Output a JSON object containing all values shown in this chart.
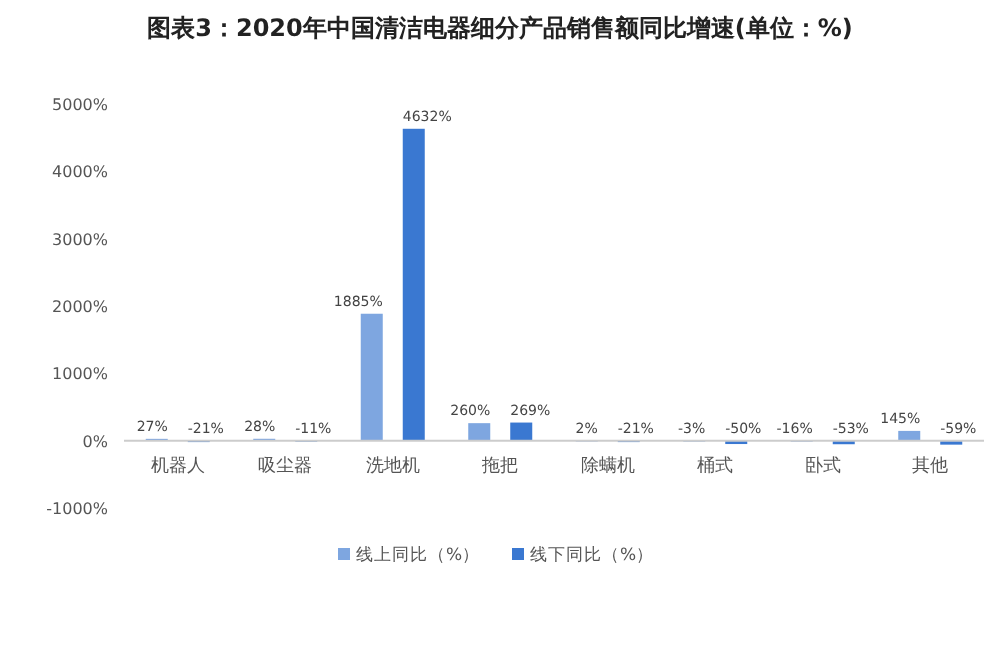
{
  "chart_data": {
    "type": "bar",
    "title": "图表3：2020年中国清洁电器细分产品销售额同比增速(单位：%)",
    "categories": [
      "机器人",
      "吸尘器",
      "洗地机",
      "拖把",
      "除螨机",
      "桶式",
      "卧式",
      "其他"
    ],
    "series": [
      {
        "name": "线上同比（%）",
        "color": "#7ea6e0",
        "values": [
          27,
          28,
          1885,
          260,
          2,
          -3,
          -16,
          145
        ],
        "value_labels": [
          "27%",
          "28%",
          "1885%",
          "260%",
          "2%",
          "-3%",
          "-16%",
          "145%"
        ]
      },
      {
        "name": "线下同比（%）",
        "color": "#3a78d1",
        "values": [
          -21,
          -11,
          4632,
          269,
          -21,
          -50,
          -53,
          -59
        ],
        "value_labels": [
          "-21%",
          "-11%",
          "4632%",
          "269%",
          "-21%",
          "-50%",
          "-53%",
          "-59%"
        ]
      }
    ],
    "ylim": [
      -1000,
      5000
    ],
    "yticks": [
      {
        "value": -1000,
        "label": "-1000%"
      },
      {
        "value": 0,
        "label": "0%"
      },
      {
        "value": 1000,
        "label": "1000%"
      },
      {
        "value": 2000,
        "label": "2000%"
      },
      {
        "value": 3000,
        "label": "3000%"
      },
      {
        "value": 4000,
        "label": "4000%"
      },
      {
        "value": 5000,
        "label": "5000%"
      }
    ],
    "legend": "bottom"
  }
}
